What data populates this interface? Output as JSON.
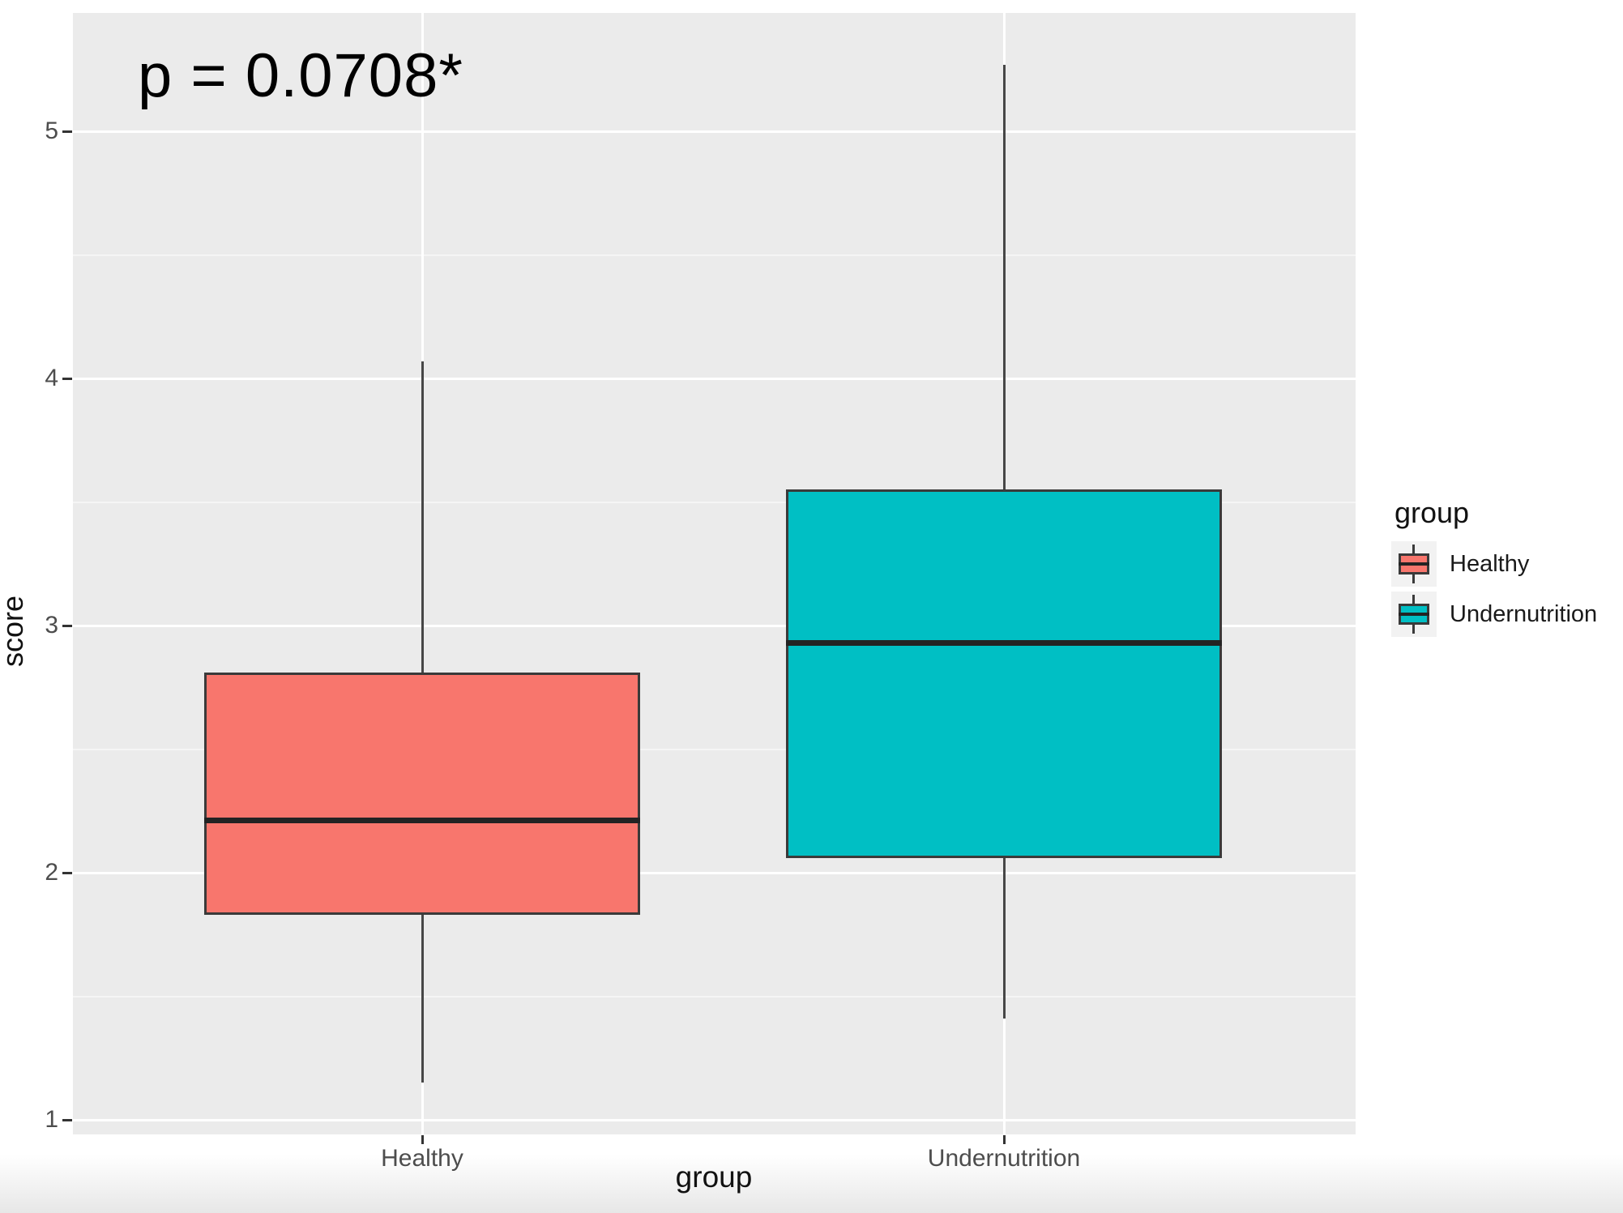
{
  "chart_data": {
    "type": "boxplot",
    "annotation": "p = 0.0708*",
    "xlabel": "group",
    "ylabel": "score",
    "y_ticks": [
      1,
      2,
      3,
      4,
      5
    ],
    "ylim": [
      0.94,
      5.48
    ],
    "grid": "on",
    "legend_position": "right",
    "categories": [
      "Healthy",
      "Undernutrition"
    ],
    "series": [
      {
        "name": "Healthy",
        "color": "#F8766D",
        "min": 1.15,
        "q1": 1.83,
        "median": 2.21,
        "q3": 2.81,
        "max": 4.07
      },
      {
        "name": "Undernutrition",
        "color": "#00BFC4",
        "min": 1.41,
        "q1": 2.06,
        "median": 2.93,
        "q3": 3.55,
        "max": 5.27
      }
    ],
    "legend": {
      "title": "group",
      "entries": [
        {
          "label": "Healthy",
          "color": "#F8766D"
        },
        {
          "label": "Undernutrition",
          "color": "#00BFC4"
        }
      ]
    },
    "colors": {
      "panel_background": "#EBEBEB",
      "gridline_major": "#FFFFFF",
      "gridline_minor": "#F5F5F5",
      "box_outline": "#3A3A3A",
      "median_line": "#232323",
      "axis_text": "#4D4D4D",
      "axis_title": "#111111"
    }
  }
}
